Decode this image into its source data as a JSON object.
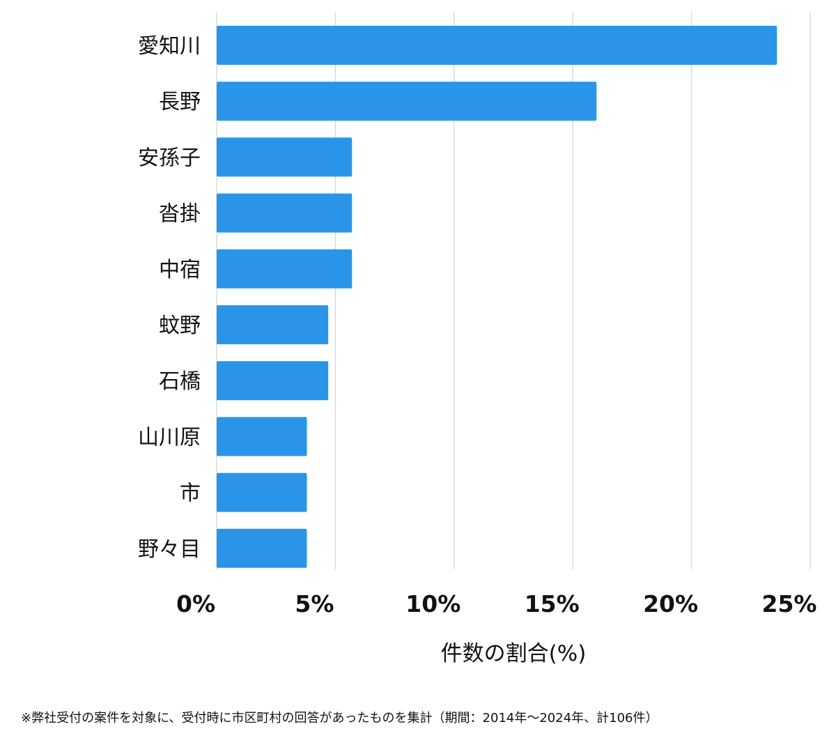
{
  "chart_data": {
    "type": "bar",
    "orientation": "horizontal",
    "categories": [
      "愛知川",
      "長野",
      "安孫子",
      "沓掛",
      "中宿",
      "蚊野",
      "石橋",
      "山川原",
      "市",
      "野々目"
    ],
    "values": [
      23.6,
      16.0,
      5.7,
      5.7,
      5.7,
      4.7,
      4.7,
      3.8,
      3.8,
      3.8
    ],
    "xlim": [
      0,
      25
    ],
    "ticks": [
      0,
      5,
      10,
      15,
      20,
      25
    ],
    "tick_labels": [
      "0%",
      "5%",
      "10%",
      "15%",
      "20%",
      "25%"
    ],
    "xlabel": "件数の割合(%)",
    "ylabel": "",
    "grid": true,
    "bar_color": "#2a95e8",
    "grid_color": "#d6d6d6"
  },
  "footnote": "※弊社受付の案件を対象に、受付時に市区町村の回答があったものを集計（期間：2014年～2024年、計106件）"
}
